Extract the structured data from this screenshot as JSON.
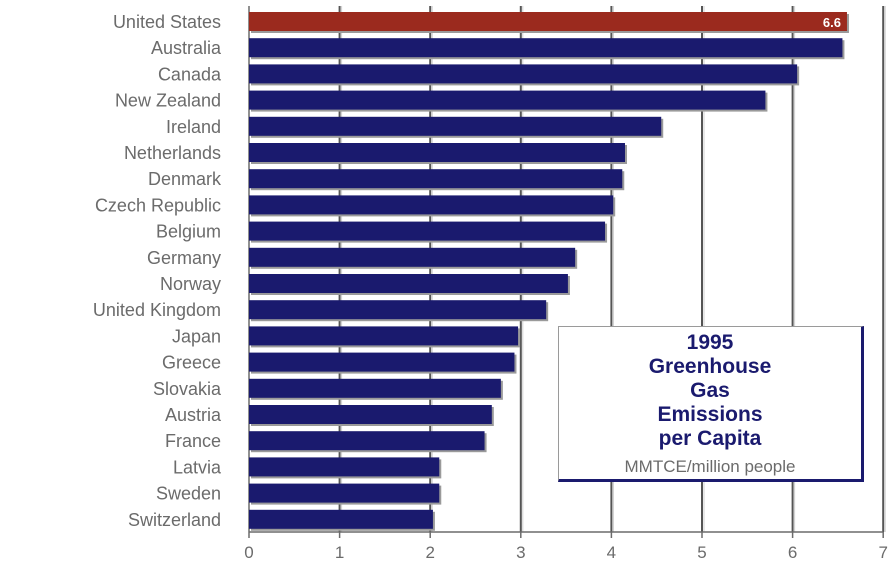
{
  "chart_data": {
    "type": "bar",
    "orientation": "horizontal",
    "title": "1995\nGreenhouse\nGas\nEmissions\nper Capita",
    "subtitle": "MMTCE/million people",
    "categories": [
      "United States",
      "Australia",
      "Canada",
      "New Zealand",
      "Ireland",
      "Netherlands",
      "Denmark",
      "Czech Republic",
      "Belgium",
      "Germany",
      "Norway",
      "United Kingdom",
      "Japan",
      "Greece",
      "Slovakia",
      "Austria",
      "France",
      "Latvia",
      "Sweden",
      "Switzerland"
    ],
    "values": [
      6.6,
      6.55,
      6.05,
      5.7,
      4.55,
      4.15,
      4.12,
      4.02,
      3.93,
      3.6,
      3.52,
      3.28,
      2.97,
      2.93,
      2.78,
      2.68,
      2.6,
      2.1,
      2.1,
      2.03
    ],
    "data_labels": {
      "0": "6.6"
    },
    "xlim": [
      0,
      7
    ],
    "xticks": [
      "0",
      "1",
      "2",
      "3",
      "4",
      "5",
      "6",
      "7"
    ],
    "xlabel": "",
    "ylabel": "",
    "grid": "vertical",
    "colors": {
      "highlight": "#9b2a1e",
      "bar": "#1a1a6e",
      "grid": "#9a9a9a",
      "text": "#6b6b6b"
    }
  }
}
